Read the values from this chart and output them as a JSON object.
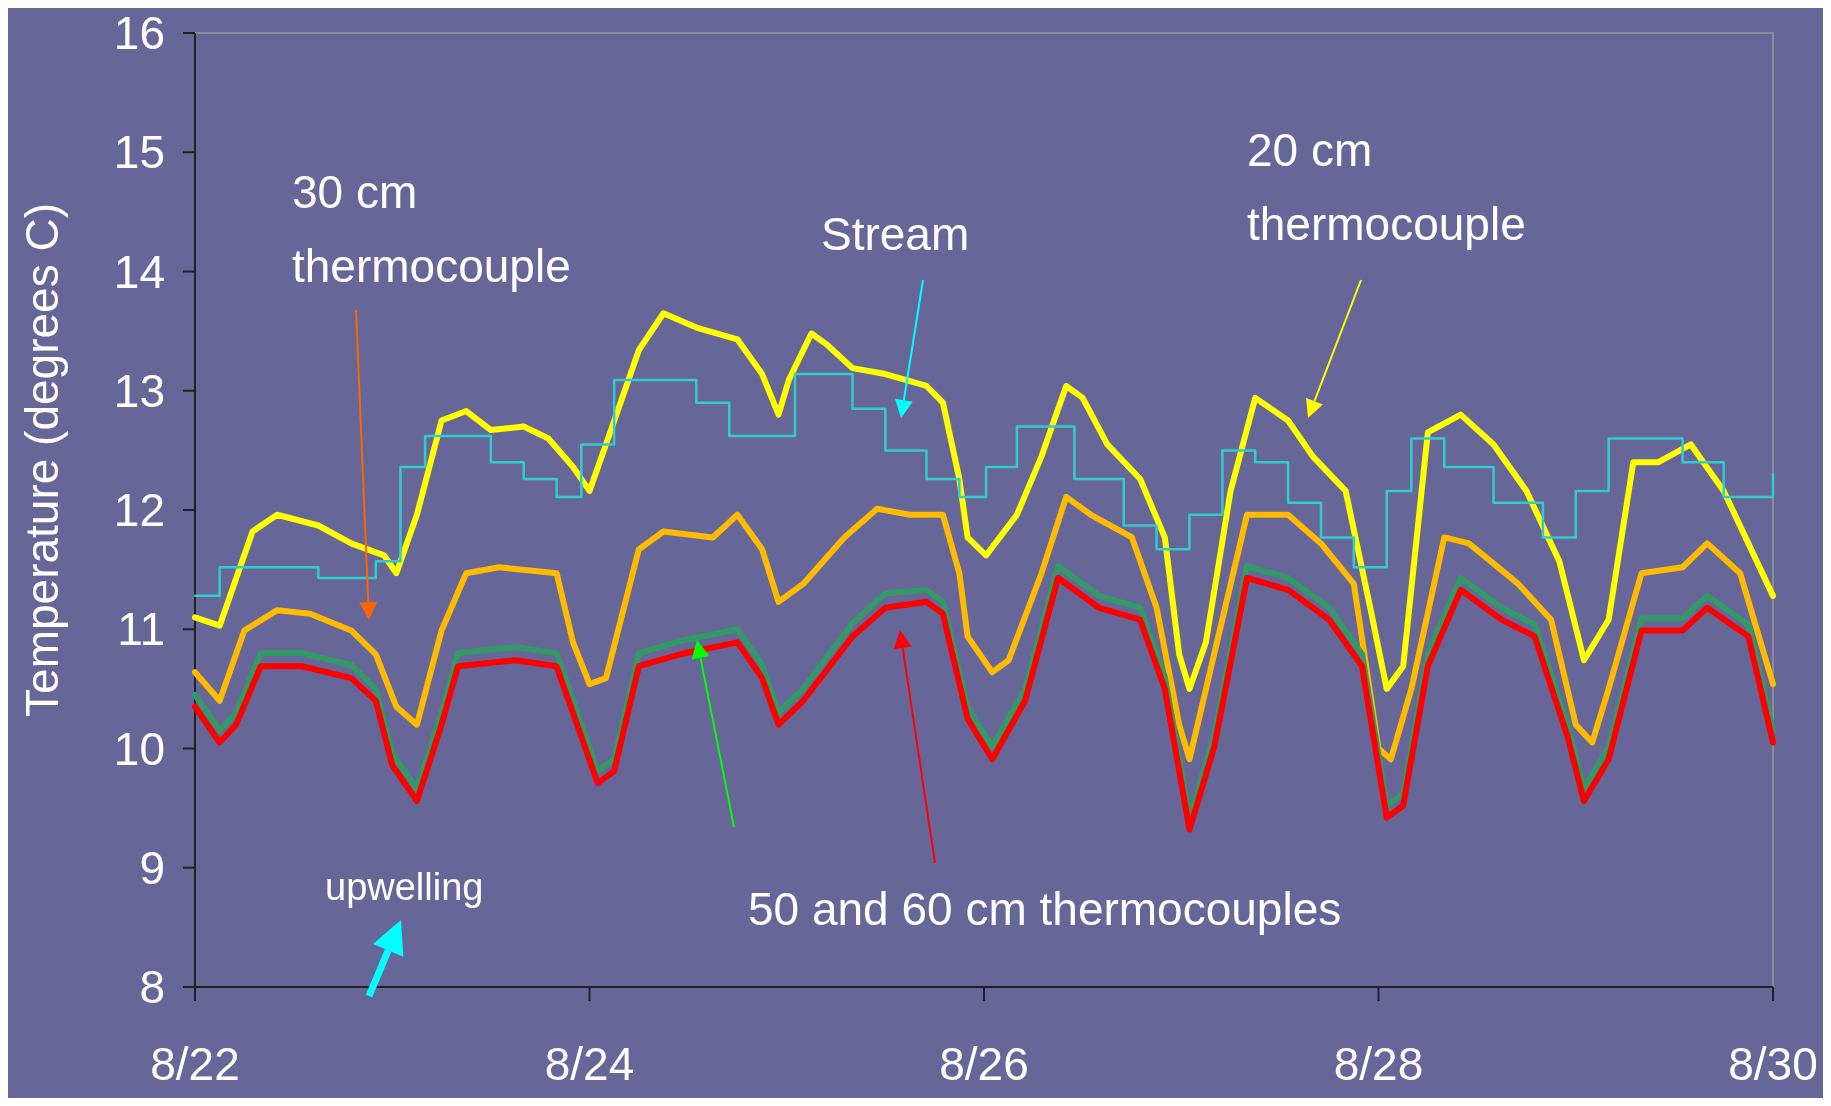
{
  "chart_data": {
    "type": "line",
    "ylabel": "Temperature (degrees C)",
    "xlim": [
      "--08-22",
      "--08-30"
    ],
    "ylim": [
      8,
      16
    ],
    "xticks": [
      {
        "value": "--08-22",
        "label": "8/22"
      },
      {
        "value": "--08-24",
        "label": "8/24"
      },
      {
        "value": "--08-26",
        "label": "8/26"
      },
      {
        "value": "--08-28",
        "label": "8/28"
      },
      {
        "value": "--08-30",
        "label": "8/30"
      }
    ],
    "yticks": [
      8,
      9,
      10,
      11,
      12,
      13,
      14,
      15,
      16
    ],
    "grid": false,
    "marker": "none",
    "line_style": "solid",
    "annotations": [
      "30 cm\nthermocouple",
      "Stream",
      "20 cm\nthermocouple",
      "upwelling",
      "50 and 60 cm thermocouples"
    ],
    "series": [
      {
        "color": "#ffff00",
        "x": [
          "--08-22T00:00",
          "--08-22T03:00",
          "--08-22T07:00",
          "--08-22T10:00",
          "--08-22T15:00",
          "--08-22T19:00",
          "--08-22T23:00",
          "--08-23T00:30",
          "--08-23T03:00",
          "--08-23T06:00",
          "--08-23T09:00",
          "--08-23T12:00",
          "--08-23T16:00",
          "--08-23T19:00",
          "--08-23T22:00",
          "--08-24T00:00",
          "--08-24T02:00",
          "--08-24T06:00",
          "--08-24T09:00",
          "--08-24T13:00",
          "--08-24T18:00",
          "--08-24T21:00",
          "--08-24T23:00",
          "--08-25T00:15",
          "--08-25T03:00",
          "--08-25T05:00",
          "--08-25T08:00",
          "--08-25T12:00",
          "--08-25T17:00",
          "--08-25T19:00",
          "--08-25T21:00",
          "--08-25T22:00",
          "--08-26T00:15",
          "--08-26T04:00",
          "--08-26T07:00",
          "--08-26T10:00",
          "--08-26T12:00",
          "--08-26T15:00",
          "--08-26T19:00",
          "--08-26T22:00",
          "--08-26T23:45",
          "--08-27T01:00",
          "--08-27T03:00",
          "--08-27T06:00",
          "--08-27T09:00",
          "--08-27T13:00",
          "--08-27T16:00",
          "--08-27T20:00",
          "--08-27T23:00",
          "--08-28T01:00",
          "--08-28T03:00",
          "--08-28T06:00",
          "--08-28T10:00",
          "--08-28T14:00",
          "--08-28T18:00",
          "--08-28T22:00",
          "--08-29T01:00",
          "--08-29T04:00",
          "--08-29T07:00",
          "--08-29T10:00",
          "--08-29T14:00",
          "--08-29T18:00",
          "--08-30T00:00"
        ],
        "values": [
          11.1,
          11.03,
          11.82,
          11.96,
          11.87,
          11.72,
          11.62,
          11.47,
          11.96,
          12.75,
          12.83,
          12.67,
          12.7,
          12.6,
          12.36,
          12.16,
          12.55,
          13.34,
          13.65,
          13.53,
          13.43,
          13.14,
          12.8,
          13.09,
          13.48,
          13.38,
          13.19,
          13.14,
          13.04,
          12.9,
          12.26,
          11.77,
          11.62,
          11.96,
          12.45,
          13.04,
          12.94,
          12.55,
          12.26,
          11.77,
          10.79,
          10.5,
          10.89,
          12.16,
          12.94,
          12.75,
          12.45,
          12.16,
          11.18,
          10.5,
          10.69,
          12.65,
          12.8,
          12.55,
          12.16,
          11.57,
          10.74,
          11.08,
          12.4,
          12.4,
          12.55,
          12.16,
          11.28
        ]
      },
      {
        "color": "#33cccc",
        "type": "step",
        "x": [
          "--08-22T00:00",
          "--08-22T03:00",
          "--08-22T15:00",
          "--08-22T19:00",
          "--08-22T22:00",
          "--08-23T01:00",
          "--08-23T04:00",
          "--08-23T08:00",
          "--08-23T12:00",
          "--08-23T16:00",
          "--08-23T20:00",
          "--08-23T23:00",
          "--08-24T03:00",
          "--08-24T06:00",
          "--08-24T13:00",
          "--08-24T17:00",
          "--08-24T21:00",
          "--08-25T01:00",
          "--08-25T04:00",
          "--08-25T08:00",
          "--08-25T12:00",
          "--08-25T17:00",
          "--08-25T21:00",
          "--08-26T00:15",
          "--08-26T04:00",
          "--08-26T07:00",
          "--08-26T11:00",
          "--08-26T17:00",
          "--08-26T21:00",
          "--08-27T01:00",
          "--08-27T05:00",
          "--08-27T09:00",
          "--08-27T13:00",
          "--08-27T17:00",
          "--08-27T21:00",
          "--08-28T01:00",
          "--08-28T04:00",
          "--08-28T08:00",
          "--08-28T14:00",
          "--08-28T20:00",
          "--08-29T00:00",
          "--08-29T04:00",
          "--08-29T07:00",
          "--08-29T13:00",
          "--08-29T18:00",
          "--08-29T22:00",
          "--08-30T00:00"
        ],
        "values": [
          11.28,
          11.52,
          11.43,
          11.43,
          11.57,
          12.36,
          12.62,
          12.62,
          12.4,
          12.26,
          12.11,
          12.55,
          13.09,
          13.09,
          12.9,
          12.62,
          12.62,
          13.14,
          13.14,
          12.85,
          12.5,
          12.26,
          12.11,
          12.36,
          12.7,
          12.7,
          12.26,
          11.87,
          11.67,
          11.96,
          12.5,
          12.4,
          12.06,
          11.77,
          11.52,
          12.16,
          12.6,
          12.36,
          12.06,
          11.77,
          12.16,
          12.6,
          12.6,
          12.4,
          12.11,
          12.11,
          12.3
        ]
      },
      {
        "color": "#ffbb00",
        "x": [
          "--08-22T00:00",
          "--08-22T03:00",
          "--08-22T06:00",
          "--08-22T10:00",
          "--08-22T14:00",
          "--08-22T19:00",
          "--08-22T22:00",
          "--08-23T00:30",
          "--08-23T03:00",
          "--08-23T06:00",
          "--08-23T09:00",
          "--08-23T13:00",
          "--08-23T20:00",
          "--08-23T22:00",
          "--08-24T00:00",
          "--08-24T02:00",
          "--08-24T06:00",
          "--08-24T09:00",
          "--08-24T15:00",
          "--08-24T18:00",
          "--08-24T21:00",
          "--08-24T23:00",
          "--08-25T02:00",
          "--08-25T07:00",
          "--08-25T11:00",
          "--08-25T15:00",
          "--08-25T19:00",
          "--08-25T21:00",
          "--08-25T22:00",
          "--08-26T01:00",
          "--08-26T03:00",
          "--08-26T07:00",
          "--08-26T10:00",
          "--08-26T13:00",
          "--08-26T18:00",
          "--08-26T21:00",
          "--08-26T23:45",
          "--08-27T01:00",
          "--08-27T04:00",
          "--08-27T08:00",
          "--08-27T13:00",
          "--08-27T17:00",
          "--08-27T21:00",
          "--08-28T00:00",
          "--08-28T01:30",
          "--08-28T04:00",
          "--08-28T08:00",
          "--08-28T11:00",
          "--08-28T17:00",
          "--08-28T21:00",
          "--08-29T00:00",
          "--08-29T02:00",
          "--08-29T04:00",
          "--08-29T08:00",
          "--08-29T13:00",
          "--08-29T16:00",
          "--08-29T20:00",
          "--08-30T00:00"
        ],
        "values": [
          10.64,
          10.4,
          10.99,
          11.16,
          11.13,
          10.99,
          10.79,
          10.35,
          10.2,
          10.99,
          11.47,
          11.52,
          11.47,
          10.89,
          10.54,
          10.59,
          11.67,
          11.82,
          11.77,
          11.96,
          11.67,
          11.23,
          11.38,
          11.77,
          12.01,
          11.96,
          11.96,
          11.47,
          10.94,
          10.64,
          10.74,
          11.47,
          12.11,
          11.96,
          11.77,
          11.18,
          10.2,
          9.91,
          10.79,
          11.96,
          11.96,
          11.72,
          11.38,
          10,
          9.91,
          10.5,
          11.77,
          11.72,
          11.38,
          11.08,
          10.2,
          10.05,
          10.5,
          11.47,
          11.52,
          11.72,
          11.47,
          10.54
        ]
      },
      {
        "color": "#339966",
        "x": [
          "--08-22T00:00",
          "--08-22T03:00",
          "--08-22T05:00",
          "--08-22T08:00",
          "--08-22T13:00",
          "--08-22T19:00",
          "--08-22T22:00",
          "--08-23T00:00",
          "--08-23T03:00",
          "--08-23T06:00",
          "--08-23T08:00",
          "--08-23T15:00",
          "--08-23T20:00",
          "--08-23T23:00",
          "--08-24T01:00",
          "--08-24T03:00",
          "--08-24T06:00",
          "--08-24T11:00",
          "--08-24T18:00",
          "--08-24T21:00",
          "--08-24T23:00",
          "--08-25T02:00",
          "--08-25T08:00",
          "--08-25T12:00",
          "--08-25T17:00",
          "--08-25T19:00",
          "--08-25T22:00",
          "--08-26T01:00",
          "--08-26T05:00",
          "--08-26T09:00",
          "--08-26T14:00",
          "--08-26T19:00",
          "--08-26T22:00",
          "--08-27T01:00",
          "--08-27T04:00",
          "--08-27T08:00",
          "--08-27T13:00",
          "--08-27T18:00",
          "--08-27T22:00",
          "--08-28T01:00",
          "--08-28T03:00",
          "--08-28T06:00",
          "--08-28T10:00",
          "--08-28T15:00",
          "--08-28T19:00",
          "--08-28T23:00",
          "--08-29T01:00",
          "--08-29T04:00",
          "--08-29T08:00",
          "--08-29T13:00",
          "--08-29T16:00",
          "--08-29T21:00",
          "--08-30T00:00"
        ],
        "values": [
          10.45,
          10.15,
          10.3,
          10.8,
          10.8,
          10.7,
          10.5,
          9.96,
          9.66,
          10.3,
          10.8,
          10.85,
          10.8,
          10.2,
          9.81,
          9.91,
          10.8,
          10.9,
          11,
          10.7,
          10.3,
          10.5,
          11.05,
          11.3,
          11.33,
          11.23,
          10.35,
          10.01,
          10.5,
          11.53,
          11.28,
          11.18,
          10.6,
          9.42,
          10.11,
          11.53,
          11.43,
          11.18,
          10.79,
          9.52,
          9.62,
          10.79,
          11.43,
          11.18,
          11.04,
          10.2,
          9.66,
          10.01,
          11.09,
          11.09,
          11.28,
          11.04,
          10.15
        ]
      },
      {
        "color": "#ff0000",
        "x": [
          "--08-22T00:00",
          "--08-22T03:00",
          "--08-22T05:00",
          "--08-22T08:00",
          "--08-22T13:00",
          "--08-22T19:00",
          "--08-22T22:00",
          "--08-23T00:00",
          "--08-23T03:00",
          "--08-23T06:00",
          "--08-23T08:00",
          "--08-23T15:00",
          "--08-23T20:00",
          "--08-23T23:00",
          "--08-24T01:00",
          "--08-24T03:00",
          "--08-24T06:00",
          "--08-24T11:00",
          "--08-24T18:00",
          "--08-24T21:00",
          "--08-24T23:00",
          "--08-25T02:00",
          "--08-25T08:00",
          "--08-25T12:00",
          "--08-25T17:00",
          "--08-25T19:00",
          "--08-25T22:00",
          "--08-26T01:00",
          "--08-26T05:00",
          "--08-26T09:00",
          "--08-26T14:00",
          "--08-26T19:00",
          "--08-26T22:00",
          "--08-27T01:00",
          "--08-27T04:00",
          "--08-27T08:00",
          "--08-27T13:00",
          "--08-27T18:00",
          "--08-27T22:00",
          "--08-28T01:00",
          "--08-28T03:00",
          "--08-28T06:00",
          "--08-28T10:00",
          "--08-28T15:00",
          "--08-28T19:00",
          "--08-28T23:00",
          "--08-29T01:00",
          "--08-29T04:00",
          "--08-29T08:00",
          "--08-29T13:00",
          "--08-29T16:00",
          "--08-29T21:00",
          "--08-30T00:00"
        ],
        "values": [
          10.35,
          10.05,
          10.2,
          10.69,
          10.69,
          10.59,
          10.4,
          9.86,
          9.56,
          10.2,
          10.69,
          10.74,
          10.69,
          10.1,
          9.71,
          9.81,
          10.69,
          10.79,
          10.89,
          10.59,
          10.2,
          10.4,
          10.94,
          11.18,
          11.23,
          11.13,
          10.25,
          9.91,
          10.4,
          11.43,
          11.18,
          11.08,
          10.5,
          9.32,
          10.01,
          11.43,
          11.33,
          11.08,
          10.69,
          9.42,
          9.52,
          10.69,
          11.33,
          11.08,
          10.94,
          10.1,
          9.56,
          9.91,
          10.99,
          10.99,
          11.18,
          10.94,
          10.05
        ]
      }
    ]
  }
}
